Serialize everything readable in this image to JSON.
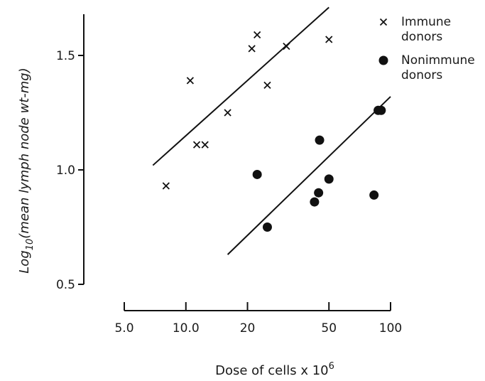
{
  "chart_data": {
    "type": "scatter",
    "xscale": "log",
    "xlim": [
      5.0,
      100
    ],
    "ylim": [
      0.5,
      1.7
    ],
    "xticks": [
      5.0,
      10.0,
      20,
      50,
      100
    ],
    "xtick_labels": [
      "5.0",
      "10.0",
      "20",
      "50",
      "100"
    ],
    "yticks": [
      0.5,
      1.0,
      1.5
    ],
    "ytick_labels": [
      "0.5",
      "1.0",
      "1.5"
    ],
    "xlabel_main": "Dose of cells x 10",
    "xlabel_sup": "6",
    "ylabel_pre": "Log",
    "ylabel_sub": "10",
    "ylabel_post": "(mean lymph node wt-mg)",
    "legend_position": "top-right",
    "series": [
      {
        "name_lines": [
          "Immune",
          "donors"
        ],
        "marker": "x",
        "points": [
          {
            "x": 8.0,
            "y": 0.93
          },
          {
            "x": 10.5,
            "y": 1.39
          },
          {
            "x": 11.3,
            "y": 1.11
          },
          {
            "x": 12.4,
            "y": 1.11
          },
          {
            "x": 16.0,
            "y": 1.25
          },
          {
            "x": 21.0,
            "y": 1.53
          },
          {
            "x": 22.3,
            "y": 1.59
          },
          {
            "x": 25.0,
            "y": 1.37
          },
          {
            "x": 31.0,
            "y": 1.54
          },
          {
            "x": 50.0,
            "y": 1.57
          }
        ],
        "fit_line": [
          {
            "x": 6.9,
            "y": 1.02
          },
          {
            "x": 50.0,
            "y": 1.71
          }
        ]
      },
      {
        "name_lines": [
          "Nonimmune",
          "donors"
        ],
        "marker": "filled-circle",
        "points": [
          {
            "x": 22.3,
            "y": 0.98
          },
          {
            "x": 25.0,
            "y": 0.75
          },
          {
            "x": 42.5,
            "y": 0.86
          },
          {
            "x": 44.5,
            "y": 0.9
          },
          {
            "x": 45.0,
            "y": 1.13
          },
          {
            "x": 50.0,
            "y": 0.96
          },
          {
            "x": 83.0,
            "y": 0.89
          },
          {
            "x": 87.0,
            "y": 1.26
          },
          {
            "x": 90.0,
            "y": 1.26
          }
        ],
        "fit_line": [
          {
            "x": 16.0,
            "y": 0.63
          },
          {
            "x": 100.0,
            "y": 1.32
          }
        ]
      }
    ]
  }
}
